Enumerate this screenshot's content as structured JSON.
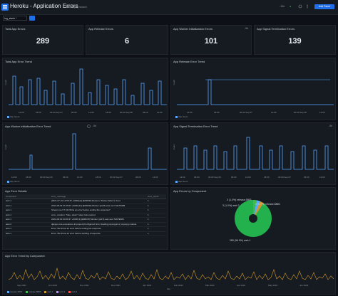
{
  "header": {
    "title": "Heroku - Application Errors",
    "subtitle": "All category search",
    "time_range": "-15d",
    "live_label": "●",
    "add_panel_label": "Add Panel"
  },
  "filter": {
    "value": "log_stash  *"
  },
  "panels": {
    "total_errors": {
      "title": "Total App Errors",
      "value": "289"
    },
    "release_errors": {
      "title": "App Release Errors",
      "value": "6"
    },
    "worker_errors": {
      "title": "App Worker Initialization Errors",
      "meta": "-5d",
      "value": "101"
    },
    "signal_errors": {
      "title": "App Signal Termination Errors",
      "value": "139"
    },
    "total_trend": {
      "title": "Total App Error Trend",
      "y_axis": "count",
      "legend": "http.hours"
    },
    "release_trend": {
      "title": "App Release Error Trend",
      "y_axis": "count",
      "legend": "http.hours"
    },
    "worker_trend": {
      "title": "App Worker Initialization Error Trend",
      "meta": "-5d",
      "y_axis": "count",
      "legend": "http.hours"
    },
    "signal_trend": {
      "title": "App Signal Termination Error Trend",
      "meta": "-5d",
      "y_axis": "count",
      "legend": "http.hours"
    },
    "error_details": {
      "title": "App Error Details",
      "columns": [
        "component",
        "error_message",
        "error_count"
      ],
      "rows": [
        {
          "component": "web.1",
          "message": "[2021-07-21 12:56:36 +0000] [2] [ERROR] Reason: Worker failed to boot",
          "count": "1"
        },
        {
          "component": "web.1",
          "message": "2021-08-03 01:09:03 +0000 [12] [ERROR] Worker (pid:8) was sent SIGTERM",
          "count": "1"
        },
        {
          "component": "web.1",
          "message": "Stream res FT FAI Write an error before ending the response?",
          "count": "1"
        },
        {
          "component": "web.1",
          "message": "error_creation: \"fake_token\" token has expired",
          "count": "1"
        },
        {
          "component": "web.1",
          "message": "2021-08-03 02:09:47 +0000 [1] [ERROR] Worker (pid:6) was sent SIGTERM",
          "count": "1"
        },
        {
          "component": "web.2",
          "message": "django.core.exceptions.ImproperlyConfigured: Error loading psycopg2 or psycopg module",
          "count": "1"
        },
        {
          "component": "web.1",
          "message": "Error: We throw an error before ending the response",
          "count": "1"
        },
        {
          "component": "web.1",
          "message": "Error: We throw an error before sending a response",
          "count": "1"
        }
      ]
    },
    "errors_by_component": {
      "title": "App Errors by Component",
      "slices": [
        {
          "label": "280 (96.9%) web.1",
          "value": 280,
          "color": "#22b14c"
        },
        {
          "label": "3 (1.0%) release.9553",
          "value": 3,
          "color": "#3fb950"
        },
        {
          "label": "3 (1.0%) web.2",
          "value": 3,
          "color": "#58a6ff"
        },
        {
          "label": "2 (0.7%) release.8866",
          "value": 2,
          "color": "#d29922"
        },
        {
          "label": "1 (0.3%) web.3",
          "value": 1,
          "color": "#f0883e"
        }
      ]
    },
    "trend_by_component": {
      "title": "App Error Trend by Component",
      "x_axis": "day",
      "legend": [
        {
          "name": "release.9553",
          "color": "#58a6ff"
        },
        {
          "name": "release.8866",
          "color": "#3fb950"
        },
        {
          "name": "web.1",
          "color": "#d29922"
        },
        {
          "name": "web.2",
          "color": "#bc8cff"
        },
        {
          "name": "web.3",
          "color": "#f85149"
        }
      ]
    }
  },
  "ticks": {
    "total": [
      "12:00",
      "18:00",
      "00:00 Sep 07",
      "06:00",
      "12:00",
      "18:00",
      "00:00 Sep 08",
      "06:00",
      "12:00"
    ],
    "worker": [
      "12:00",
      "18:00",
      "00:00 Sep 06",
      "06:00",
      "12:00",
      "18:00",
      "00:00 Sep 07",
      "06:00",
      "12:00"
    ],
    "bottom": [
      "Sep 2021",
      "Oct 2021",
      "Nov 2021",
      "Dec 2021",
      "Jan 2022",
      "Feb 2022",
      "Mar 2022",
      "Apr 2022",
      "May 2022",
      "Jun 2022"
    ]
  }
}
